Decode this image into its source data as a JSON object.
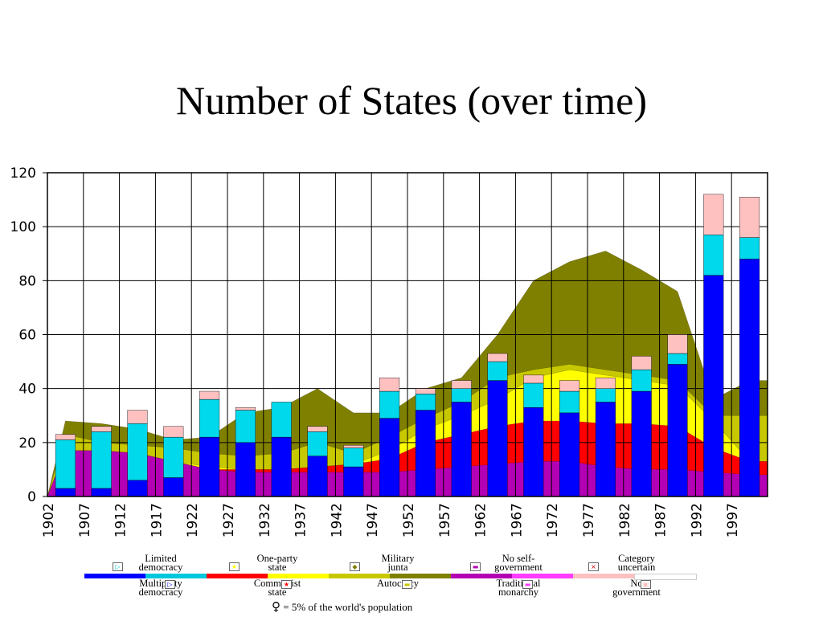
{
  "title": "Number of States (over time)",
  "legend": [
    {
      "label": "Limited\ndemocracy",
      "color": "#00c8dc",
      "icon": "flag-icon"
    },
    {
      "label": "Multiparty\ndemocracy",
      "color": "#0000ff",
      "icon": "flag-icon"
    },
    {
      "label": "One-party\nstate",
      "color": "#ffff00",
      "icon": "star-icon"
    },
    {
      "label": "Communist\nstate",
      "color": "#ff0000",
      "icon": "star-icon"
    },
    {
      "label": "Military\njunta",
      "color": "#808000",
      "icon": "fist-icon"
    },
    {
      "label": "Autocracy",
      "color": "#c8c800",
      "icon": "crown-icon"
    },
    {
      "label": "No self-\ngovernment",
      "color": "#b400b4",
      "icon": "bar-icon"
    },
    {
      "label": "Traditional\nmonarchy",
      "color": "#ff3cff",
      "icon": "throne-icon"
    },
    {
      "label": "Category\nuncertain",
      "color": "#ffffff",
      "icon": "cross-icon"
    },
    {
      "label": "No\ngovernment",
      "color": "#ffc0c0",
      "icon": "q-icon"
    }
  ],
  "population_note": "= 5% of the world's population",
  "chart_data": {
    "type": "area",
    "title": "Number of States (over time)",
    "xlabel": "",
    "ylabel": "",
    "ylim": [
      0,
      120
    ],
    "grid": true,
    "yticks": [
      "0",
      "20",
      "40",
      "60",
      "80",
      "100",
      "120"
    ],
    "years": [
      "1902",
      "1907",
      "1912",
      "1917",
      "1922",
      "1927",
      "1932",
      "1937",
      "1942",
      "1947",
      "1952",
      "1957",
      "1962",
      "1967",
      "1972",
      "1977",
      "1982",
      "1987",
      "1992",
      "1997"
    ],
    "area_series": [
      {
        "name": "No self-government",
        "color": "#b400b4",
        "values": [
          17,
          17,
          16,
          13,
          10,
          9,
          9,
          9,
          9,
          9,
          10,
          11,
          12,
          13,
          13,
          11,
          10,
          10,
          9,
          8
        ]
      },
      {
        "name": "Communist state",
        "color": "#ff0000",
        "values": [
          17,
          17,
          16,
          13,
          10,
          10,
          10,
          11,
          12,
          14,
          20,
          23,
          26,
          28,
          28,
          27,
          27,
          26,
          18,
          13
        ]
      },
      {
        "name": "One-party state",
        "color": "#ffff00",
        "values": [
          17,
          17,
          16,
          13,
          11,
          10,
          10,
          11,
          12,
          17,
          25,
          30,
          36,
          44,
          47,
          45,
          43,
          41,
          28,
          13
        ]
      },
      {
        "name": "Autocracy",
        "color": "#c8c800",
        "values": [
          23,
          20,
          19,
          18,
          16,
          15,
          16,
          20,
          16,
          22,
          29,
          35,
          44,
          47,
          49,
          47,
          45,
          43,
          30,
          30
        ]
      },
      {
        "name": "Military junta",
        "color": "#808000",
        "values": [
          28,
          27,
          25,
          21,
          22,
          31,
          33,
          40,
          31,
          31,
          40,
          44,
          60,
          80,
          87,
          91,
          84,
          76,
          36,
          43
        ]
      }
    ],
    "bar_series": [
      {
        "name": "Multiparty democracy",
        "color": "#0000ff",
        "values": [
          3,
          3,
          6,
          7,
          22,
          20,
          22,
          15,
          11,
          29,
          32,
          35,
          43,
          33,
          31,
          35,
          39,
          49,
          82,
          88
        ]
      },
      {
        "name": "Limited democracy",
        "color": "#00d8ec",
        "values": [
          18,
          21,
          21,
          15,
          14,
          12,
          13,
          9,
          7,
          10,
          6,
          5,
          7,
          9,
          8,
          5,
          8,
          4,
          15,
          8
        ]
      },
      {
        "name": "No government",
        "color": "#ffc0c0",
        "values": [
          2,
          2,
          5,
          4,
          3,
          1,
          0,
          2,
          1,
          5,
          2,
          3,
          3,
          3,
          4,
          4,
          5,
          7,
          15,
          15
        ]
      }
    ]
  }
}
